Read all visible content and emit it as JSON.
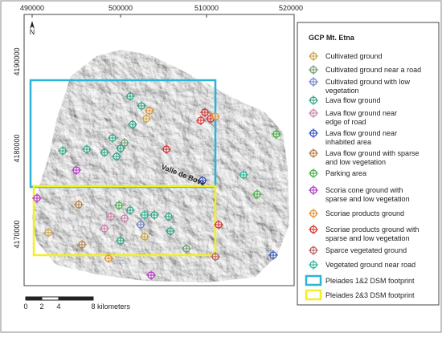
{
  "map": {
    "x_labels": [
      "490000",
      "500000",
      "510000",
      "520000"
    ],
    "y_labels": [
      "4190000",
      "4180000",
      "4170000"
    ],
    "north": "N",
    "place_label": "Valle de Bove",
    "scale": {
      "labels": [
        "0",
        "2",
        "4",
        "8"
      ],
      "unit": "kilometers"
    }
  },
  "legend": {
    "title": "GCP Mt. Etna",
    "items": [
      {
        "lines": [
          "Cultivated ground"
        ],
        "color": "#c9a040"
      },
      {
        "lines": [
          "Cultivated ground near a road"
        ],
        "color": "#6f9a70"
      },
      {
        "lines": [
          "Cultivated ground with low",
          "vegetation"
        ],
        "color": "#7384c4"
      },
      {
        "lines": [
          "Lava flow ground"
        ],
        "color": "#2fa283"
      },
      {
        "lines": [
          "Lava flow ground near",
          "edge of road"
        ],
        "color": "#c87fa5"
      },
      {
        "lines": [
          "Lava flow ground near",
          "inhabited area"
        ],
        "color": "#3352c2"
      },
      {
        "lines": [
          "Lava flow ground with sparse",
          "and low vegetation"
        ],
        "color": "#b07a44"
      },
      {
        "lines": [
          "Parking area"
        ],
        "color": "#3fae3f"
      },
      {
        "lines": [
          "Scoria cone ground with",
          "sparse and low vegetation"
        ],
        "color": "#b232c4"
      },
      {
        "lines": [
          "Scoriae products ground"
        ],
        "color": "#e09134"
      },
      {
        "lines": [
          "Scoriae products ground with",
          "sparse and low vegetation"
        ],
        "color": "#d43030"
      },
      {
        "lines": [
          "Sparce vegetated ground"
        ],
        "color": "#c05858"
      },
      {
        "lines": [
          "Vegetated ground near road"
        ],
        "color": "#1fb394"
      }
    ],
    "footprints": [
      {
        "label": "Pleiades 1&2 DSM footprint",
        "color": "#2ab4d9"
      },
      {
        "label": "Pleiades 2&3 DSM footprint",
        "color": "#f2f01e"
      }
    ]
  }
}
